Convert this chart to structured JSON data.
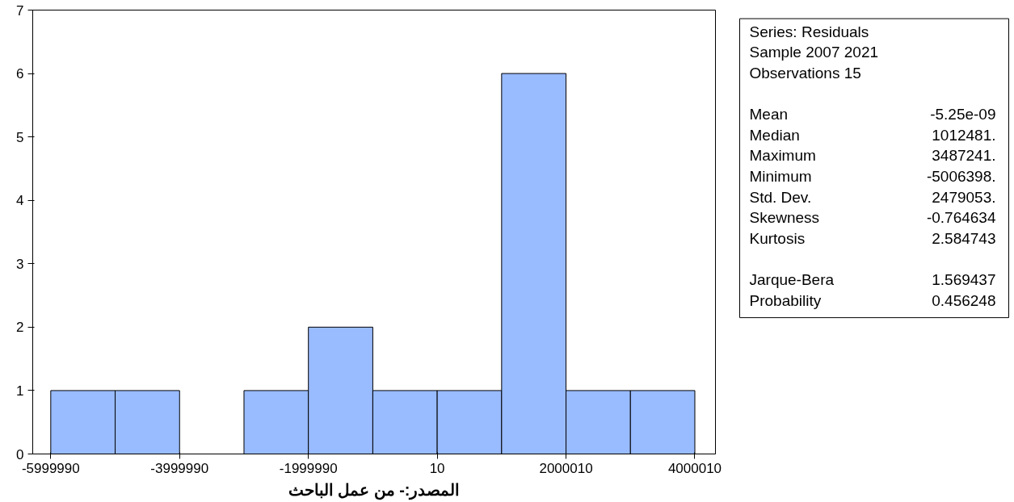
{
  "chart_data": [
    {
      "type": "histogram",
      "bins": [
        -5999990,
        -4999990,
        -3999990,
        -2999990,
        -1999990,
        -999990,
        10,
        1000010,
        2000010,
        3000010,
        4000010
      ],
      "values": [
        1,
        1,
        0,
        1,
        2,
        1,
        1,
        6,
        1,
        1
      ],
      "color": "#99bbff",
      "xlim": [
        -6280000,
        4320000
      ],
      "ylim": [
        0,
        7
      ],
      "xticks": [
        -5999990,
        -3999990,
        -1999990,
        10,
        2000010,
        4000010
      ],
      "yticks": [
        0,
        1,
        2,
        3,
        4,
        5,
        6,
        7
      ],
      "grid": false,
      "annotations": [
        "المصدر:- من عمل الباحث"
      ]
    },
    {
      "type": "other",
      "annotations": [
        "Series: Residuals",
        "Sample 2007 2021",
        "Observations 15",
        "Mean\t-5.25e-09",
        "Median\t1012481.",
        "Maximum\t3487241.",
        "Minimum\t-5006398.",
        "Std. Dev.\t2479053.",
        "Skewness\t-0.764634",
        "Kurtosis\t2.584743",
        "Jarque-Bera\t1.569437",
        "Probability\t0.456248"
      ]
    }
  ]
}
